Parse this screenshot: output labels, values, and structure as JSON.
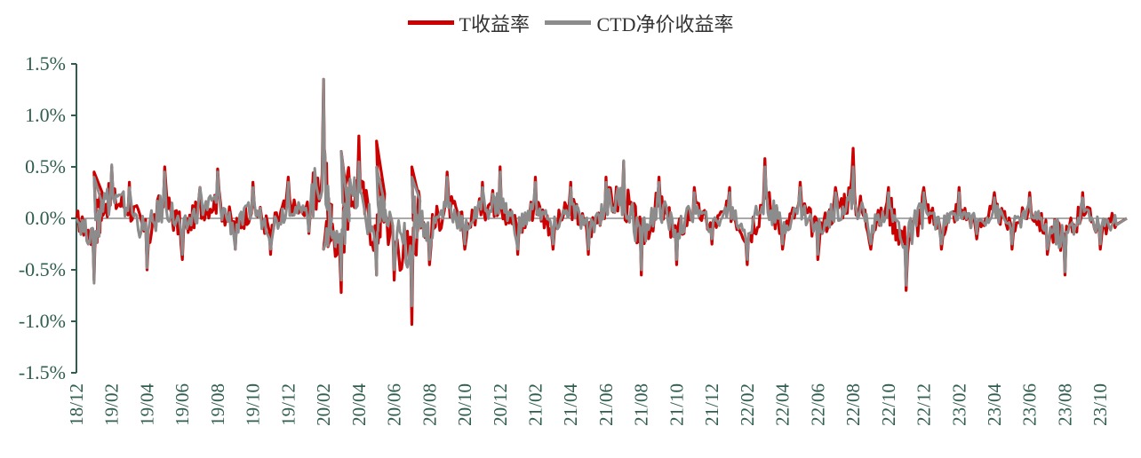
{
  "legend": {
    "t_label": "T收益率",
    "ctd_label": "CTD净价收益率"
  },
  "colors": {
    "t": "#cc0000",
    "ctd": "#8c8c8c",
    "axis": "#2f5d50",
    "zero": "#555555"
  },
  "chart_data": {
    "type": "line",
    "ylim": [
      -1.5,
      1.5
    ],
    "y_ticks": [
      "1.5%",
      "1.0%",
      "0.5%",
      "0.0%",
      "-0.5%",
      "-1.0%",
      "-1.5%"
    ],
    "y_tick_values": [
      1.5,
      1.0,
      0.5,
      0.0,
      -0.5,
      -1.0,
      -1.5
    ],
    "x_ticks": [
      "18/12",
      "19/02",
      "19/04",
      "19/06",
      "19/08",
      "19/10",
      "19/12",
      "20/02",
      "20/04",
      "20/06",
      "20/08",
      "20/10",
      "20/12",
      "21/02",
      "21/04",
      "21/06",
      "21/08",
      "21/10",
      "21/12",
      "22/02",
      "22/04",
      "22/06",
      "22/08",
      "22/10",
      "22/12",
      "23/02",
      "23/04",
      "23/06",
      "23/08",
      "23/10"
    ],
    "x_range_months": [
      "2018-12",
      "2023-11"
    ],
    "series": [
      {
        "name": "T收益率",
        "color": "#cc0000",
        "points": [
          [
            "2018-12",
            0.0
          ],
          [
            "2019-01",
            -0.6
          ],
          [
            "2019-01",
            0.45
          ],
          [
            "2019-02",
            0.5
          ],
          [
            "2019-03",
            0.35
          ],
          [
            "2019-04",
            -0.5
          ],
          [
            "2019-05",
            0.5
          ],
          [
            "2019-06",
            -0.4
          ],
          [
            "2019-07",
            0.3
          ],
          [
            "2019-08",
            0.48
          ],
          [
            "2019-09",
            -0.3
          ],
          [
            "2019-10",
            0.35
          ],
          [
            "2019-11",
            -0.35
          ],
          [
            "2019-12",
            0.4
          ],
          [
            "2020-01",
            0.1
          ],
          [
            "2020-02",
            1.35
          ],
          [
            "2020-02",
            -0.3
          ],
          [
            "2020-03",
            -0.72
          ],
          [
            "2020-03",
            0.65
          ],
          [
            "2020-04",
            0.8
          ],
          [
            "2020-05",
            -0.55
          ],
          [
            "2020-05",
            0.75
          ],
          [
            "2020-06",
            -0.6
          ],
          [
            "2020-07",
            -1.03
          ],
          [
            "2020-07",
            0.5
          ],
          [
            "2020-08",
            -0.45
          ],
          [
            "2020-09",
            0.45
          ],
          [
            "2020-10",
            -0.3
          ],
          [
            "2020-11",
            0.35
          ],
          [
            "2020-12",
            0.5
          ],
          [
            "2021-01",
            -0.35
          ],
          [
            "2021-02",
            0.4
          ],
          [
            "2021-03",
            -0.3
          ],
          [
            "2021-04",
            0.35
          ],
          [
            "2021-05",
            -0.35
          ],
          [
            "2021-06",
            0.4
          ],
          [
            "2021-07",
            0.55
          ],
          [
            "2021-08",
            -0.55
          ],
          [
            "2021-09",
            0.4
          ],
          [
            "2021-10",
            -0.45
          ],
          [
            "2021-11",
            0.3
          ],
          [
            "2021-12",
            -0.25
          ],
          [
            "2022-01",
            0.3
          ],
          [
            "2022-02",
            -0.45
          ],
          [
            "2022-03",
            0.58
          ],
          [
            "2022-04",
            -0.3
          ],
          [
            "2022-05",
            0.35
          ],
          [
            "2022-06",
            -0.4
          ],
          [
            "2022-07",
            0.3
          ],
          [
            "2022-08",
            0.68
          ],
          [
            "2022-09",
            -0.3
          ],
          [
            "2022-10",
            0.3
          ],
          [
            "2022-11",
            -0.7
          ],
          [
            "2022-12",
            0.3
          ],
          [
            "2023-01",
            -0.3
          ],
          [
            "2023-02",
            0.3
          ],
          [
            "2023-03",
            -0.2
          ],
          [
            "2023-04",
            0.25
          ],
          [
            "2023-05",
            -0.3
          ],
          [
            "2023-06",
            0.25
          ],
          [
            "2023-07",
            -0.35
          ],
          [
            "2023-08",
            -0.55
          ],
          [
            "2023-09",
            0.25
          ],
          [
            "2023-10",
            -0.3
          ],
          [
            "2023-11",
            0.0
          ]
        ]
      },
      {
        "name": "CTD净价收益率",
        "color": "#8c8c8c",
        "points": [
          [
            "2018-12",
            0.0
          ],
          [
            "2019-01",
            -0.63
          ],
          [
            "2019-01",
            0.4
          ],
          [
            "2019-02",
            0.52
          ],
          [
            "2019-03",
            0.3
          ],
          [
            "2019-04",
            -0.48
          ],
          [
            "2019-05",
            0.45
          ],
          [
            "2019-06",
            -0.35
          ],
          [
            "2019-07",
            0.3
          ],
          [
            "2019-08",
            0.45
          ],
          [
            "2019-09",
            -0.3
          ],
          [
            "2019-10",
            0.3
          ],
          [
            "2019-11",
            -0.3
          ],
          [
            "2019-12",
            0.35
          ],
          [
            "2020-01",
            0.1
          ],
          [
            "2020-02",
            1.35
          ],
          [
            "2020-02",
            -0.3
          ],
          [
            "2020-03",
            -0.6
          ],
          [
            "2020-03",
            0.65
          ],
          [
            "2020-04",
            0.55
          ],
          [
            "2020-05",
            -0.55
          ],
          [
            "2020-05",
            0.5
          ],
          [
            "2020-06",
            -0.5
          ],
          [
            "2020-07",
            -0.85
          ],
          [
            "2020-07",
            0.4
          ],
          [
            "2020-08",
            -0.4
          ],
          [
            "2020-09",
            0.4
          ],
          [
            "2020-10",
            -0.25
          ],
          [
            "2020-11",
            0.3
          ],
          [
            "2020-12",
            0.45
          ],
          [
            "2021-01",
            -0.3
          ],
          [
            "2021-02",
            0.35
          ],
          [
            "2021-03",
            -0.25
          ],
          [
            "2021-04",
            0.3
          ],
          [
            "2021-05",
            -0.3
          ],
          [
            "2021-06",
            0.35
          ],
          [
            "2021-07",
            0.56
          ],
          [
            "2021-08",
            -0.5
          ],
          [
            "2021-09",
            0.35
          ],
          [
            "2021-10",
            -0.4
          ],
          [
            "2021-11",
            0.25
          ],
          [
            "2021-12",
            -0.2
          ],
          [
            "2022-01",
            0.25
          ],
          [
            "2022-02",
            -0.4
          ],
          [
            "2022-03",
            0.5
          ],
          [
            "2022-04",
            -0.25
          ],
          [
            "2022-05",
            0.3
          ],
          [
            "2022-06",
            -0.35
          ],
          [
            "2022-07",
            0.25
          ],
          [
            "2022-08",
            0.5
          ],
          [
            "2022-09",
            -0.25
          ],
          [
            "2022-10",
            0.25
          ],
          [
            "2022-11",
            -0.65
          ],
          [
            "2022-12",
            0.25
          ],
          [
            "2023-01",
            -0.25
          ],
          [
            "2023-02",
            0.25
          ],
          [
            "2023-03",
            -0.15
          ],
          [
            "2023-04",
            0.2
          ],
          [
            "2023-05",
            -0.25
          ],
          [
            "2023-06",
            0.2
          ],
          [
            "2023-07",
            -0.3
          ],
          [
            "2023-08",
            -0.52
          ],
          [
            "2023-09",
            0.2
          ],
          [
            "2023-10",
            -0.25
          ],
          [
            "2023-11",
            0.0
          ]
        ]
      }
    ]
  }
}
